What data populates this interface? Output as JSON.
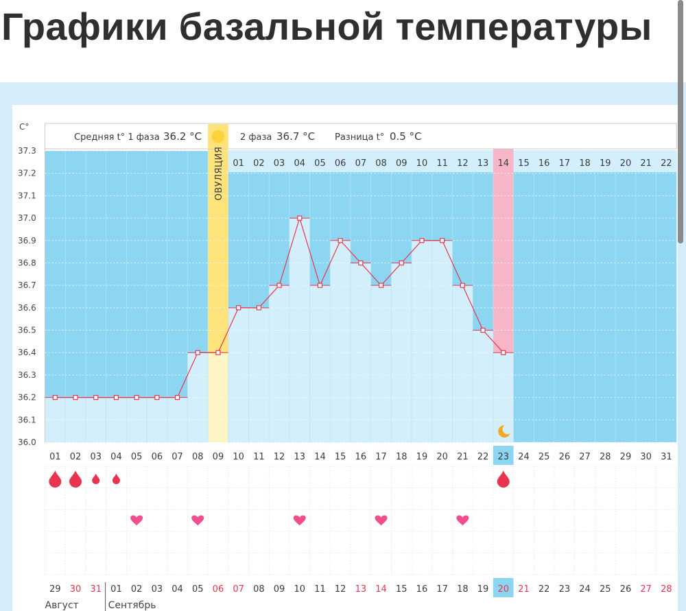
{
  "page_title": "Графики базальной температуры",
  "header": {
    "phase1_label": "Средняя t° 1 фаза",
    "phase1_value": "36.2 °С",
    "phase2_label": "2 фаза",
    "phase2_value": "36.7 °С",
    "diff_label": "Разница t°",
    "diff_value": "0.5 °С"
  },
  "ovulation_label": "ОВУЛЯЦИЯ",
  "colors": {
    "background_blue": "#8dd6f1",
    "bar_fill": "#d3effb",
    "line": "#e8344e",
    "ovulation": "#fde37a",
    "current_day": "#f7b6c8",
    "accent_red": "#e8344e",
    "heart": "#f24d8c"
  },
  "chart_data": {
    "type": "line",
    "ylabel": "С°",
    "ylim": [
      36.0,
      37.3
    ],
    "y_ticks": [
      "37.3",
      "37.2",
      "37.1",
      "37.0",
      "36.9",
      "36.8",
      "36.7",
      "36.6",
      "36.5",
      "36.4",
      "36.3",
      "36.2",
      "36.1",
      "36.0"
    ],
    "cycle_days": [
      "01",
      "02",
      "03",
      "04",
      "05",
      "06",
      "07",
      "08",
      "09",
      "10",
      "11",
      "12",
      "13",
      "14",
      "15",
      "16",
      "17",
      "18",
      "19",
      "20",
      "21",
      "22",
      "23",
      "24",
      "25",
      "26",
      "27",
      "28",
      "29",
      "30",
      "31"
    ],
    "second_phase_days": [
      "01",
      "02",
      "03",
      "04",
      "05",
      "06",
      "07",
      "08",
      "09",
      "10",
      "11",
      "12",
      "13",
      "14",
      "15",
      "16",
      "17",
      "18",
      "19",
      "20",
      "21",
      "22"
    ],
    "temperatures": [
      36.2,
      36.2,
      36.2,
      36.2,
      36.2,
      36.2,
      36.2,
      36.4,
      36.4,
      36.6,
      36.6,
      36.7,
      37.0,
      36.7,
      36.9,
      36.8,
      36.7,
      36.8,
      36.9,
      36.9,
      36.7,
      36.5,
      36.4
    ],
    "ovulation_day": 9,
    "current_day": 23,
    "bleeding_days": [
      {
        "day": 1,
        "size": "large"
      },
      {
        "day": 2,
        "size": "large"
      },
      {
        "day": 3,
        "size": "small"
      },
      {
        "day": 4,
        "size": "small"
      },
      {
        "day": 23,
        "size": "large"
      }
    ],
    "heart_days": [
      5,
      8,
      13,
      17,
      21
    ],
    "calendar_dates": [
      "29",
      "30",
      "31",
      "01",
      "02",
      "03",
      "04",
      "05",
      "06",
      "07",
      "08",
      "09",
      "10",
      "11",
      "12",
      "13",
      "14",
      "15",
      "16",
      "17",
      "18",
      "19",
      "20",
      "21",
      "22",
      "23",
      "24",
      "25",
      "26",
      "27",
      "28"
    ],
    "calendar_red_indices": [
      1,
      2,
      8,
      9,
      15,
      16,
      22,
      23,
      29,
      30
    ],
    "months": [
      "Август",
      "Сентябрь"
    ]
  }
}
